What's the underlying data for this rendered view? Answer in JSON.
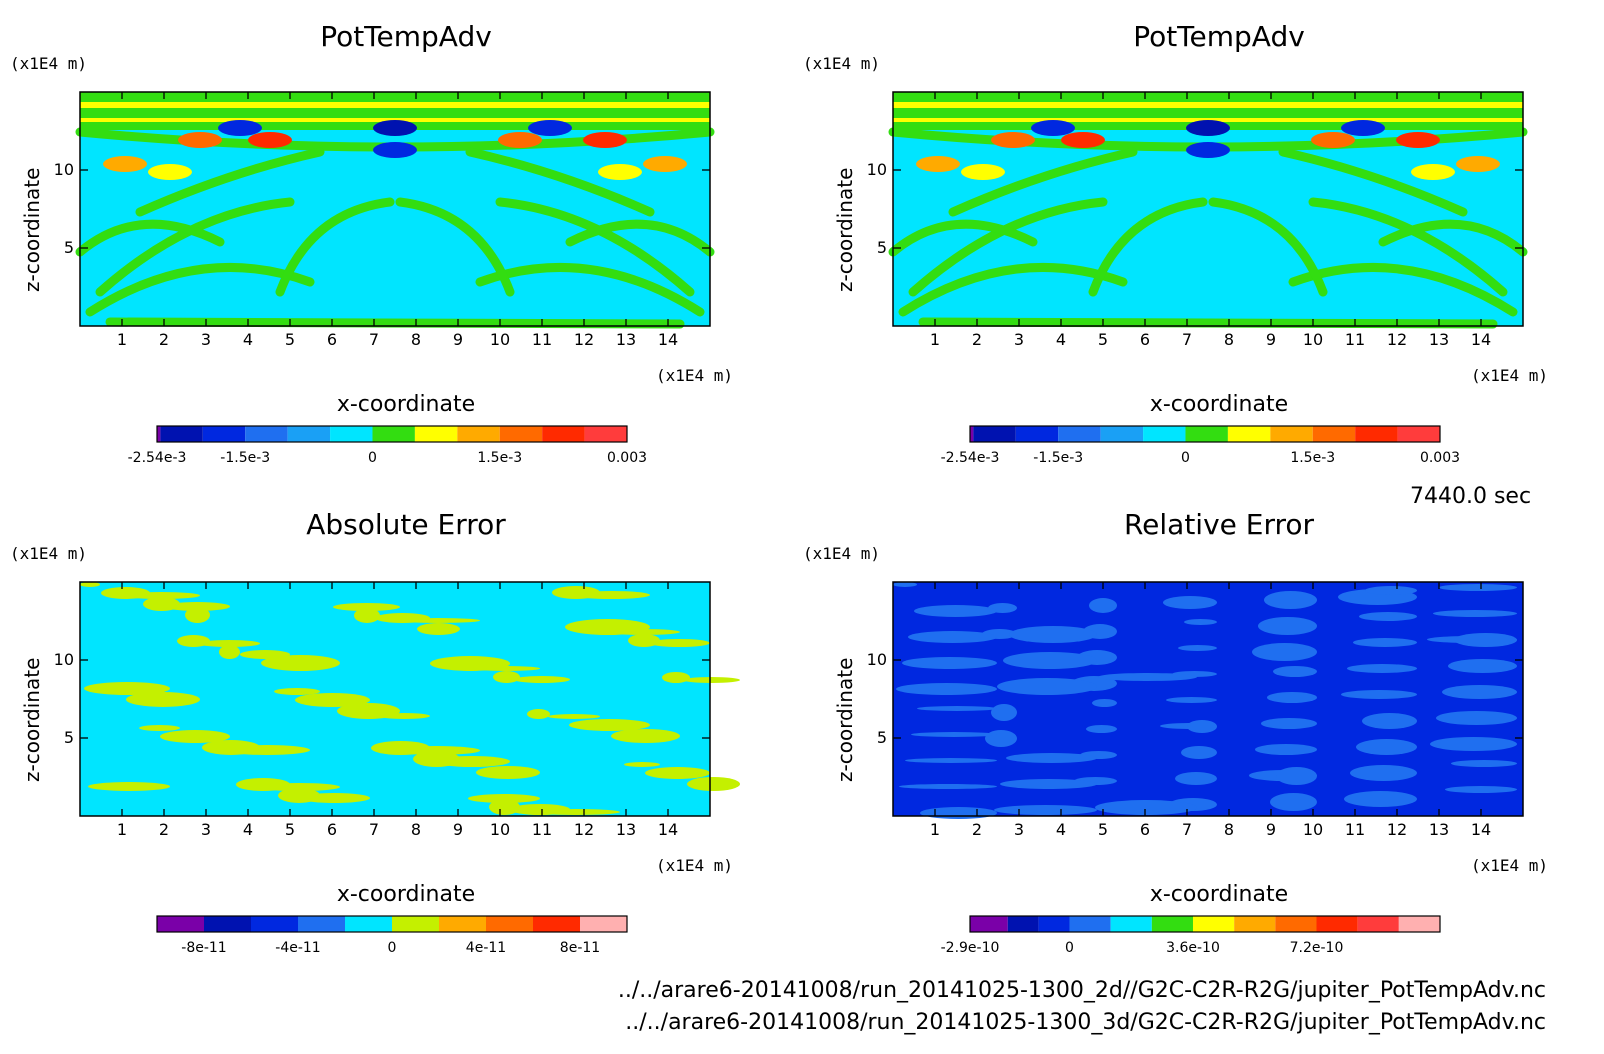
{
  "time_label": "7440.0 sec",
  "file_paths": [
    "../../arare6-20141008/run_20141025-1300_2d//G2C-C2R-R2G/jupiter_PotTempAdv.nc",
    "../../arare6-20141008/run_20141025-1300_3d/G2C-C2R-R2G/jupiter_PotTempAdv.nc"
  ],
  "chart_data": [
    {
      "type": "heatmap",
      "title": "PotTempAdv",
      "xlabel": "x-coordinate",
      "ylabel": "z-coordinate",
      "x_unit": "(x1E4 m)",
      "y_unit": "(x1E4 m)",
      "xlim": [
        0,
        15
      ],
      "ylim": [
        0,
        15
      ],
      "x_ticks": [
        1,
        2,
        3,
        4,
        5,
        6,
        7,
        8,
        9,
        10,
        11,
        12,
        13,
        14
      ],
      "y_ticks": [
        5,
        10
      ],
      "colorbar": {
        "colors": [
          "#7a00a8",
          "#0012b0",
          "#0028e0",
          "#1f6ff0",
          "#1aa0f5",
          "#00e5ff",
          "#33dd11",
          "#ffff00",
          "#ffaa00",
          "#ff6a00",
          "#ff2a00",
          "#ff3c3c"
        ],
        "boundaries": [
          -0.00254,
          -0.0025,
          -0.002,
          -0.0015,
          -0.001,
          -0.0005,
          0,
          0.0005,
          0.001,
          0.0015,
          0.002,
          0.0025,
          0.003
        ],
        "tick_labels": [
          "-2.54e-3",
          "-1.5e-3",
          "0",
          "1.5e-3",
          "0.003"
        ],
        "tick_values": [
          -0.00254,
          -0.0015,
          0,
          0.0015,
          0.003
        ]
      }
    },
    {
      "type": "heatmap",
      "title": "PotTempAdv",
      "xlabel": "x-coordinate",
      "ylabel": "z-coordinate",
      "x_unit": "(x1E4 m)",
      "y_unit": "(x1E4 m)",
      "xlim": [
        0,
        15
      ],
      "ylim": [
        0,
        15
      ],
      "x_ticks": [
        1,
        2,
        3,
        4,
        5,
        6,
        7,
        8,
        9,
        10,
        11,
        12,
        13,
        14
      ],
      "y_ticks": [
        5,
        10
      ],
      "colorbar": {
        "colors": [
          "#7a00a8",
          "#0012b0",
          "#0028e0",
          "#1f6ff0",
          "#1aa0f5",
          "#00e5ff",
          "#33dd11",
          "#ffff00",
          "#ffaa00",
          "#ff6a00",
          "#ff2a00",
          "#ff3c3c"
        ],
        "boundaries": [
          -0.00254,
          -0.0025,
          -0.002,
          -0.0015,
          -0.001,
          -0.0005,
          0,
          0.0005,
          0.001,
          0.0015,
          0.002,
          0.0025,
          0.003
        ],
        "tick_labels": [
          "-2.54e-3",
          "-1.5e-3",
          "0",
          "1.5e-3",
          "0.003"
        ],
        "tick_values": [
          -0.00254,
          -0.0015,
          0,
          0.0015,
          0.003
        ]
      }
    },
    {
      "type": "heatmap",
      "title": "Absolute Error",
      "xlabel": "x-coordinate",
      "ylabel": "z-coordinate",
      "x_unit": "(x1E4 m)",
      "y_unit": "(x1E4 m)",
      "xlim": [
        0,
        15
      ],
      "ylim": [
        0,
        15
      ],
      "x_ticks": [
        1,
        2,
        3,
        4,
        5,
        6,
        7,
        8,
        9,
        10,
        11,
        12,
        13,
        14
      ],
      "y_ticks": [
        5,
        10
      ],
      "colorbar": {
        "colors": [
          "#7a00a8",
          "#0012b0",
          "#0028e0",
          "#1f6ff0",
          "#00e5ff",
          "#c4f000",
          "#ffaa00",
          "#ff6a00",
          "#ff2a00",
          "#ffb0b0"
        ],
        "boundaries": [
          -1e-10,
          -8e-11,
          -6e-11,
          -4e-11,
          -2e-11,
          0,
          2e-11,
          4e-11,
          6e-11,
          8e-11,
          1e-10
        ],
        "tick_labels": [
          "-8e-11",
          "-4e-11",
          "0",
          "4e-11",
          "8e-11"
        ],
        "tick_values": [
          -8e-11,
          -4e-11,
          0,
          4e-11,
          8e-11
        ]
      }
    },
    {
      "type": "heatmap",
      "title": "Relative Error",
      "xlabel": "x-coordinate",
      "ylabel": "z-coordinate",
      "x_unit": "(x1E4 m)",
      "y_unit": "(x1E4 m)",
      "xlim": [
        0,
        15
      ],
      "ylim": [
        0,
        15
      ],
      "x_ticks": [
        1,
        2,
        3,
        4,
        5,
        6,
        7,
        8,
        9,
        10,
        11,
        12,
        13,
        14
      ],
      "y_ticks": [
        5,
        10
      ],
      "colorbar": {
        "colors": [
          "#7a00a8",
          "#0012b0",
          "#0028e0",
          "#1f6ff0",
          "#00e5ff",
          "#33dd11",
          "#ffff00",
          "#ffaa00",
          "#ff6a00",
          "#ff2a00",
          "#ff3c3c",
          "#ffb0b0"
        ],
        "boundaries": [
          -2.9e-10,
          -1.8e-10,
          -9e-11,
          0,
          1.2e-10,
          2.4e-10,
          3.6e-10,
          4.8e-10,
          6e-10,
          7.2e-10,
          8.4e-10,
          9.6e-10,
          1.08e-09
        ],
        "tick_labels": [
          "-2.9e-10",
          "0",
          "3.6e-10",
          "7.2e-10"
        ],
        "tick_values": [
          -2.9e-10,
          0,
          3.6e-10,
          7.2e-10
        ]
      }
    }
  ]
}
